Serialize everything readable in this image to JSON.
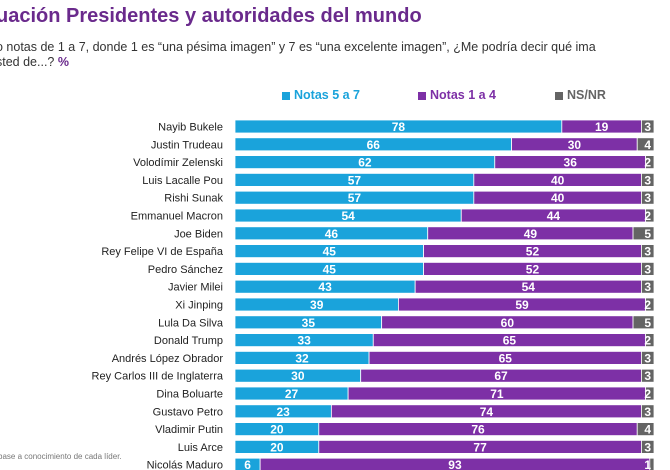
{
  "title": "uación Presidentes y autoridades del mundo",
  "subtitle_line1": "o notas de 1 a 7, donde 1 es “una pésima imagen” y 7 es “una excelente imagen”, ¿Me podría decir qué ima",
  "subtitle_line2": "sted de...?",
  "subtitle_unit": "%",
  "footnote": "base a conocimiento de cada líder.",
  "colors": {
    "s1": "#1aa3db",
    "s2": "#7d30a6",
    "s3": "#646464"
  },
  "chart_data": {
    "type": "bar",
    "orientation": "horizontal",
    "stacked": true,
    "xlim": [
      0,
      100
    ],
    "legend_position": "top",
    "categories": [
      "Nayib Bukele",
      "Justin Trudeau",
      "Volodímir Zelenski",
      "Luis Lacalle Pou",
      "Rishi Sunak",
      "Emmanuel Macron",
      "Joe Biden",
      "Rey Felipe VI de España",
      "Pedro Sánchez",
      "Javier Milei",
      "Xi Jinping",
      "Lula Da Silva",
      "Donald Trump",
      "Andrés López Obrador",
      "Rey Carlos III de Inglaterra",
      "Dina Boluarte",
      "Gustavo Petro",
      "Vladimir Putin",
      "Luis Arce",
      "Nicolás Maduro"
    ],
    "series": [
      {
        "name": "Notas 5 a 7",
        "values": [
          78,
          66,
          62,
          57,
          57,
          54,
          46,
          45,
          45,
          43,
          39,
          35,
          33,
          32,
          30,
          27,
          23,
          20,
          20,
          6
        ]
      },
      {
        "name": "Notas 1 a 4",
        "values": [
          19,
          30,
          36,
          40,
          40,
          44,
          49,
          52,
          52,
          54,
          59,
          60,
          65,
          65,
          67,
          71,
          74,
          76,
          77,
          93
        ]
      },
      {
        "name": "NS/NR",
        "values": [
          3,
          4,
          2,
          3,
          3,
          2,
          5,
          3,
          3,
          3,
          2,
          5,
          2,
          3,
          3,
          2,
          3,
          4,
          3,
          1
        ]
      }
    ]
  }
}
